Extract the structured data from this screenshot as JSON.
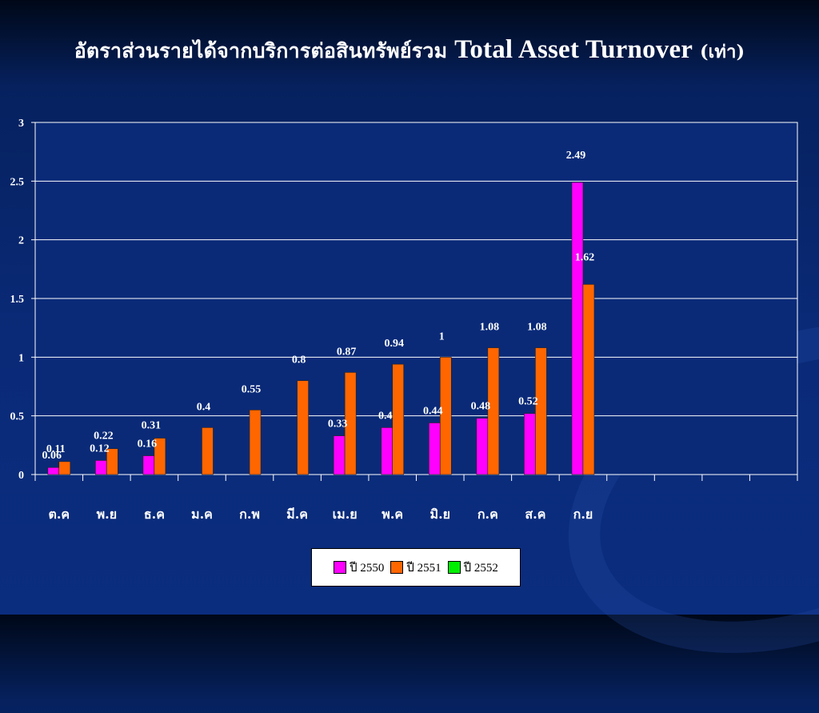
{
  "slide": {
    "title_thai": "อัตราส่วนรายได้จากบริการต่อสินทรัพย์รวม",
    "title_en": "Total Asset Turnover",
    "title_unit": "(เท่า)"
  },
  "colors": {
    "series_2550": "#ff00ff",
    "series_2551": "#ff6600",
    "series_2552": "#00ee00",
    "plot_bg": "#0a2a78",
    "grid": "#ffffff"
  },
  "chart_data": {
    "type": "bar",
    "title": "Total Asset Turnover",
    "xlabel": "",
    "ylabel": "",
    "ylim": [
      0,
      3
    ],
    "yticks": [
      0,
      0.5,
      1,
      1.5,
      2,
      2.5,
      3
    ],
    "ytick_labels": [
      "0",
      "0.5",
      "1",
      "1.5",
      "2",
      "2.5",
      "3"
    ],
    "grid": true,
    "legend_position": "bottom",
    "categories": [
      "ต.ค",
      "พ.ย",
      "ธ.ค",
      "ม.ค",
      "ก.พ",
      "มี.ค",
      "เม.ย",
      "พ.ค",
      "มิ.ย",
      "ก.ค",
      "ส.ค",
      "ก.ย",
      "",
      "",
      "",
      ""
    ],
    "series": [
      {
        "name": "ปี 2550",
        "values": [
          0.06,
          0.12,
          0.16,
          null,
          null,
          null,
          0.33,
          0.4,
          0.44,
          0.48,
          0.52,
          2.49,
          null,
          null,
          null,
          null
        ],
        "labels": [
          "0.06",
          "0.12",
          "0.16",
          null,
          null,
          null,
          "0.33",
          "0.4",
          "0.44",
          "0.48",
          "0.52",
          "2.49",
          null,
          null,
          null,
          null
        ]
      },
      {
        "name": "ปี 2551",
        "values": [
          0.11,
          0.22,
          0.31,
          0.4,
          0.55,
          0.8,
          0.87,
          0.94,
          1,
          1.08,
          1.08,
          1.62,
          null,
          null,
          null,
          null
        ],
        "labels": [
          "0.11",
          "0.22",
          "0.31",
          "0.4",
          "0.55",
          "0.8",
          "0.87",
          "0.94",
          "1",
          "1.08",
          "1.08",
          "1.62",
          null,
          null,
          null,
          null
        ]
      },
      {
        "name": "ปี 2552",
        "values": [
          null,
          null,
          null,
          null,
          null,
          null,
          null,
          null,
          null,
          null,
          null,
          null,
          null,
          null,
          null,
          null
        ],
        "labels": []
      }
    ]
  }
}
